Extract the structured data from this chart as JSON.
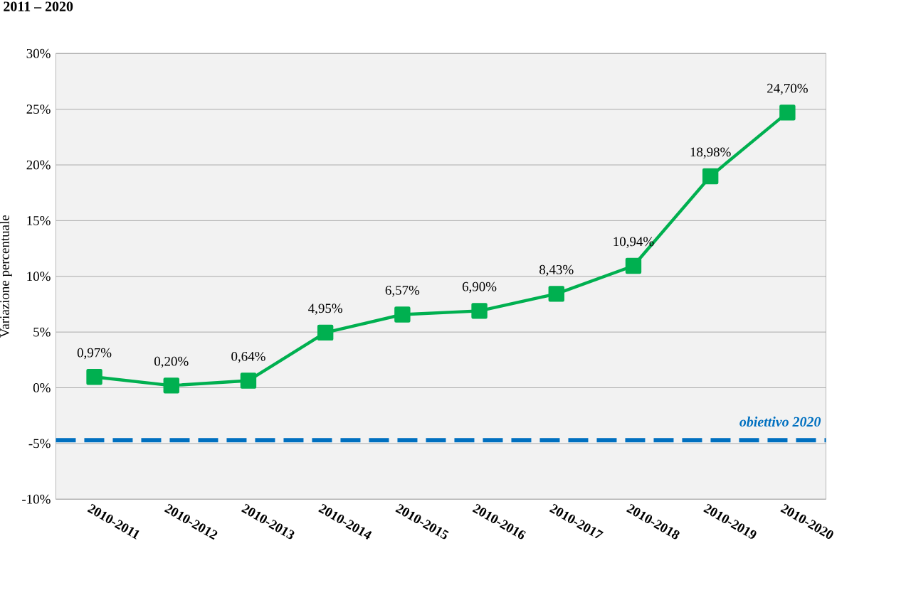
{
  "chart_data": {
    "type": "line",
    "title": "2011 – 2020",
    "ylabel": "Variazione percentuale",
    "categories": [
      "2010-2011",
      "2010-2012",
      "2010-2013",
      "2010-2014",
      "2010-2015",
      "2010-2016",
      "2010-2017",
      "2010-2018",
      "2010-2019",
      "2010-2020"
    ],
    "series": [
      {
        "color": "#00b050",
        "values": [
          0.97,
          0.2,
          0.64,
          4.95,
          6.57,
          6.9,
          8.43,
          10.94,
          18.98,
          24.7
        ],
        "value_labels": [
          "0,97%",
          "0,20%",
          "0,64%",
          "4,95%",
          "6,57%",
          "6,90%",
          "8,43%",
          "10,94%",
          "18,98%",
          "24,70%"
        ]
      }
    ],
    "ylim": [
      -10,
      30
    ],
    "yticks": [
      {
        "value": -10,
        "label": "-10%"
      },
      {
        "value": -5,
        "label": "-5%"
      },
      {
        "value": 0,
        "label": "0%"
      },
      {
        "value": 5,
        "label": "5%"
      },
      {
        "value": 10,
        "label": "10%"
      },
      {
        "value": 15,
        "label": "15%"
      },
      {
        "value": 20,
        "label": "20%"
      },
      {
        "value": 25,
        "label": "25%"
      },
      {
        "value": 30,
        "label": "30%"
      }
    ],
    "ref_lines": [
      {
        "axis": "y",
        "value": -4.7,
        "label": "obiettivo  2020",
        "color": "#0070c0",
        "line_style": "dashed"
      }
    ],
    "grid": "y",
    "marker": "square",
    "line_style": "solid"
  }
}
